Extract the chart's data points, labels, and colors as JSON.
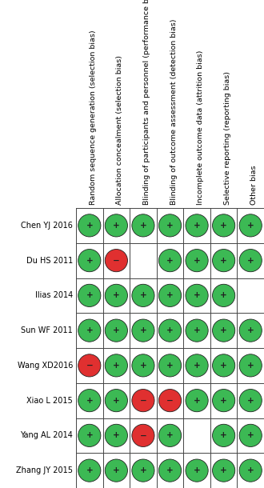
{
  "studies": [
    "Chen YJ 2016",
    "Du HS 2011",
    "Ilias 2014",
    "Sun WF 2011",
    "Wang XD2016",
    "Xiao L 2015",
    "Yang AL 2014",
    "Zhang JY 2015"
  ],
  "columns": [
    "Random sequence generation (selection bias)",
    "Allocation concealment (selection bias)",
    "Blinding of participants and personnel (performance bias)",
    "Blinding of outcome assessment (detection bias)",
    "Incomplete outcome data (attrition bias)",
    "Selective reporting (reporting bias)",
    "Other bias"
  ],
  "grid": [
    [
      "G",
      "G",
      "G",
      "G",
      "G",
      "G",
      "G"
    ],
    [
      "G",
      "R",
      "B",
      "G",
      "G",
      "G",
      "G"
    ],
    [
      "G",
      "G",
      "G",
      "G",
      "G",
      "G",
      "B"
    ],
    [
      "G",
      "G",
      "G",
      "G",
      "G",
      "G",
      "G"
    ],
    [
      "R",
      "G",
      "G",
      "G",
      "G",
      "G",
      "G"
    ],
    [
      "G",
      "G",
      "R",
      "R",
      "G",
      "G",
      "G"
    ],
    [
      "G",
      "G",
      "R",
      "G",
      "B",
      "G",
      "G"
    ],
    [
      "G",
      "G",
      "G",
      "G",
      "G",
      "G",
      "G"
    ]
  ],
  "green_color": "#3cb954",
  "red_color": "#e03030",
  "blank_color": "#ffffff",
  "circle_edge_color": "#222222",
  "bg_color": "#ffffff",
  "grid_line_color": "#444444",
  "text_color": "#000000",
  "study_fontsize": 7.0,
  "col_fontsize": 6.8,
  "symbol_plus": "+",
  "symbol_minus": "−"
}
